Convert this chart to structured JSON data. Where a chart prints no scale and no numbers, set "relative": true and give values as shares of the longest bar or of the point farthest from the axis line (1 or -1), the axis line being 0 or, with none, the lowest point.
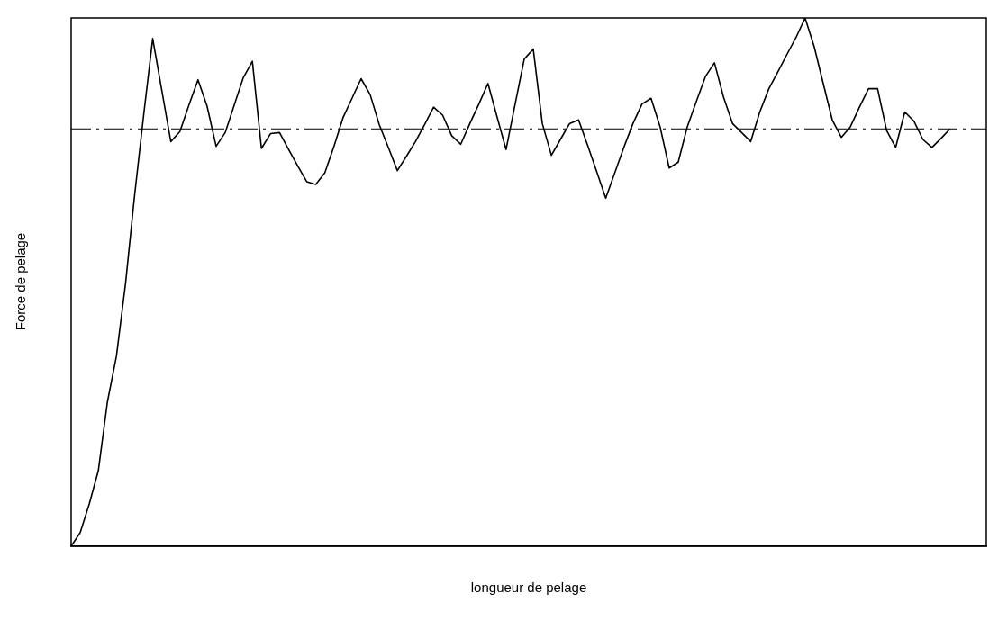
{
  "chart_data": {
    "type": "line",
    "relative": true,
    "xlabel": "longueur de pelage",
    "ylabel": "Force de pelage",
    "categories": [
      null,
      null,
      null,
      null,
      null,
      null,
      null,
      null,
      null,
      null,
      null,
      null,
      null,
      null,
      null,
      null,
      null,
      null,
      null,
      null,
      null,
      null,
      null,
      null,
      null,
      null,
      null,
      null,
      null,
      null,
      null,
      null,
      null,
      null,
      null,
      null,
      null,
      null,
      null,
      null,
      null,
      null,
      null,
      null,
      null,
      null,
      null,
      null,
      null,
      null,
      null,
      null,
      null,
      null,
      null,
      null,
      null,
      null,
      null,
      null,
      null,
      null,
      null,
      null,
      null,
      null,
      null,
      null,
      null,
      null,
      null,
      null,
      null,
      null,
      null,
      null,
      null,
      null,
      null,
      null,
      null,
      null,
      null,
      null,
      null,
      null,
      null,
      null,
      null,
      null,
      null,
      null,
      null,
      null,
      null,
      null,
      null,
      null,
      null,
      null,
      null,
      null
    ],
    "series": [
      {
        "color": "#000000",
        "values": [
          0,
          0.026,
          0.08,
          0.143,
          0.273,
          0.36,
          0.497,
          0.664,
          0.816,
          0.961,
          0.863,
          0.766,
          0.785,
          0.835,
          0.883,
          0.833,
          0.757,
          0.783,
          0.835,
          0.887,
          0.918,
          0.753,
          0.781,
          0.783,
          0.751,
          0.72,
          0.69,
          0.685,
          0.707,
          0.757,
          0.811,
          0.848,
          0.885,
          0.855,
          0.798,
          0.755,
          0.711,
          0.738,
          0.766,
          0.798,
          0.831,
          0.816,
          0.777,
          0.761,
          0.8,
          0.837,
          0.876,
          0.813,
          0.751,
          0.837,
          0.922,
          0.941,
          0.8,
          0.74,
          0.77,
          0.8,
          0.807,
          0.759,
          0.709,
          0.659,
          0.707,
          0.755,
          0.8,
          0.837,
          0.848,
          0.794,
          0.716,
          0.727,
          0.794,
          0.842,
          0.889,
          0.915,
          0.85,
          0.8,
          0.783,
          0.766,
          0.822,
          0.866,
          0.898,
          0.931,
          0.963,
          1.0,
          0.946,
          0.876,
          0.807,
          0.774,
          0.794,
          0.831,
          0.866,
          0.866,
          0.787,
          0.755,
          0.822,
          0.805,
          0.77,
          0.755,
          0.772,
          0.79,
          null,
          null,
          null,
          null
        ]
      }
    ],
    "ref_lines": [
      {
        "axis": "y",
        "value": 0.79,
        "color": "#000000",
        "line_style": "dashed"
      }
    ],
    "marker": "none",
    "line_style": "solid",
    "grid": false,
    "legend": false
  }
}
